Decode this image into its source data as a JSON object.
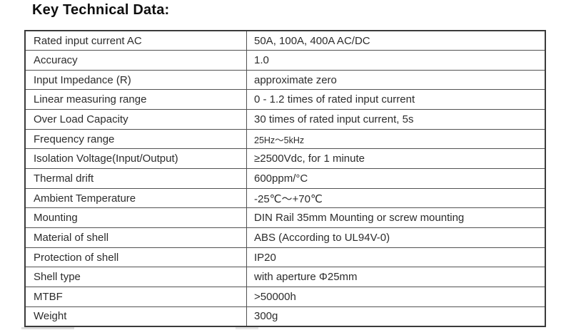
{
  "title": "Key Technical Data:",
  "table": {
    "rows": [
      {
        "label": "Rated input current AC",
        "value": "50A, 100A, 400A AC/DC",
        "small": false
      },
      {
        "label": "Accuracy",
        "value": "1.0",
        "small": false
      },
      {
        "label": "Input Impedance (R)",
        "value": "approximate zero",
        "small": false
      },
      {
        "label": "Linear measuring range",
        "value": "0 - 1.2 times of rated input current",
        "small": false
      },
      {
        "label": "Over Load Capacity",
        "value": "30 times of rated input current, 5s",
        "small": false
      },
      {
        "label": "Frequency range",
        "value": "25Hz～5kHz",
        "small": true
      },
      {
        "label": "Isolation Voltage(Input/Output)",
        "value": "≥2500Vdc, for 1 minute",
        "small": false
      },
      {
        "label": "Thermal drift",
        "value": "600ppm/°C",
        "small": false
      },
      {
        "label": "Ambient Temperature",
        "value": "-25℃～+70℃",
        "small": false
      },
      {
        "label": "Mounting",
        "value": "DIN Rail 35mm Mounting or screw mounting",
        "small": false
      },
      {
        "label": "Material of shell",
        "value": "ABS (According to UL94V-0)",
        "small": false
      },
      {
        "label": "Protection of shell",
        "value": "IP20",
        "small": false
      },
      {
        "label": "Shell type",
        "value": "with aperture Φ25mm",
        "small": false
      },
      {
        "label": "MTBF",
        "value": ">50000h",
        "small": false
      },
      {
        "label": "Weight",
        "value": "300g",
        "small": false
      }
    ]
  },
  "colors": {
    "background": "#ffffff",
    "outer_border": "#3a3a3a",
    "inner_border": "#525252",
    "text": "#2c2c2c",
    "title_text": "#0e0e0e"
  }
}
